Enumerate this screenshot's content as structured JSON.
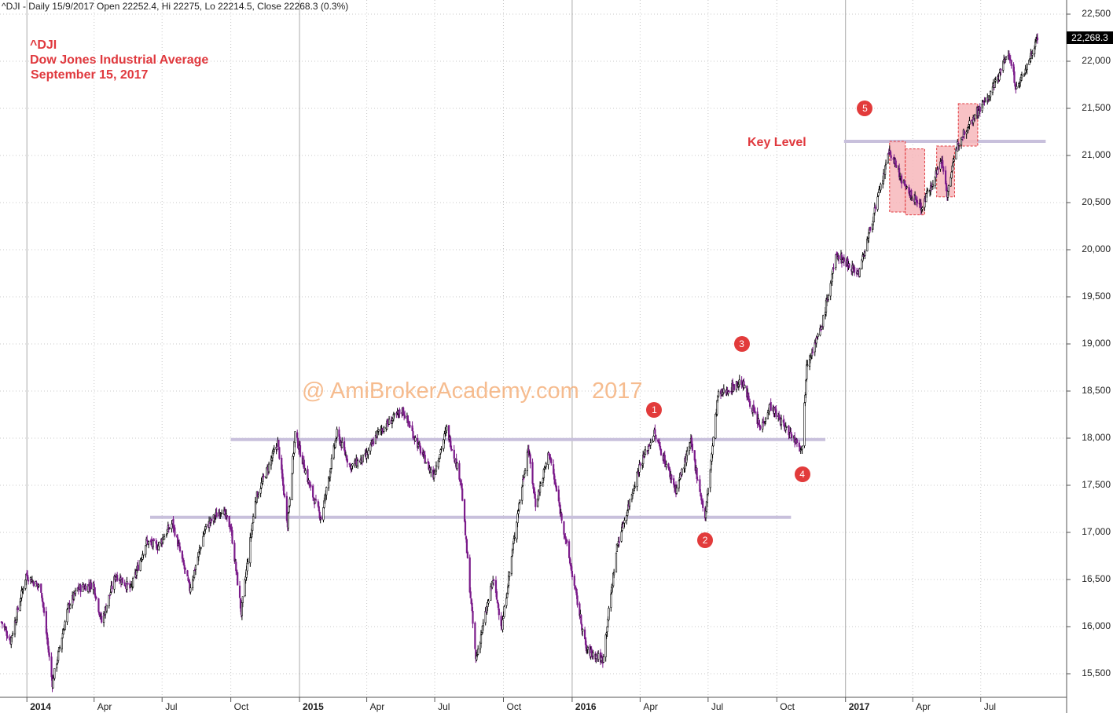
{
  "header": {
    "text": "^DJI - Daily 15/9/2017 Open 22252.4, Hi 22275, Lo 22214.5, Close 22268.3 (0.3%)"
  },
  "title_block": {
    "line1": "^DJI",
    "line2": "Dow Jones Industrial Average",
    "line3": "September 15, 2017"
  },
  "last_price_label": "22,268.3",
  "key_level_label": "Key Level",
  "watermark": "@ AmiBrokerAcademy.com  2017",
  "colors": {
    "up_candle": "#000000",
    "down_candle": "#7b1b8a",
    "level_line": "#c8c0dc",
    "box_fill": "#f7b7bb",
    "box_border": "#e0393e",
    "marker": "#e23b3b",
    "annotation_text": "#e0393e",
    "grid": "#c8c8c8"
  },
  "markers": [
    {
      "label": "1",
      "date": "2016-04-20",
      "price": 18300
    },
    {
      "label": "2",
      "date": "2016-06-27",
      "price": 16920
    },
    {
      "label": "3",
      "date": "2016-08-15",
      "price": 19000
    },
    {
      "label": "4",
      "date": "2016-11-04",
      "price": 17620
    },
    {
      "label": "5",
      "date": "2017-01-27",
      "price": 21500
    }
  ],
  "chart_data": {
    "type": "line",
    "title": "^DJI",
    "xlabel": "",
    "ylabel": "",
    "ylim": [
      15250,
      22650
    ],
    "xlim": [
      "2013-11-26",
      "2017-10-24"
    ],
    "y_ticks": [
      15500,
      16000,
      16500,
      17000,
      17500,
      18000,
      18500,
      19000,
      19500,
      20000,
      20500,
      21000,
      21500,
      22000,
      22500
    ],
    "y_tick_labels": [
      "15,500",
      "16,000",
      "16,500",
      "17,000",
      "17,500",
      "18,000",
      "18,500",
      "19,000",
      "19,500",
      "20,000",
      "20,500",
      "21,000",
      "21,500",
      "22,000",
      "22,500"
    ],
    "x_ticks": [
      {
        "date": "2014-01-01",
        "label": "2014",
        "major": true
      },
      {
        "date": "2014-04-01",
        "label": "Apr",
        "major": false
      },
      {
        "date": "2014-07-01",
        "label": "Jul",
        "major": false
      },
      {
        "date": "2014-10-01",
        "label": "Oct",
        "major": false
      },
      {
        "date": "2015-01-01",
        "label": "2015",
        "major": true
      },
      {
        "date": "2015-04-01",
        "label": "Apr",
        "major": false
      },
      {
        "date": "2015-07-01",
        "label": "Jul",
        "major": false
      },
      {
        "date": "2015-10-01",
        "label": "Oct",
        "major": false
      },
      {
        "date": "2016-01-01",
        "label": "2016",
        "major": true
      },
      {
        "date": "2016-04-01",
        "label": "Apr",
        "major": false
      },
      {
        "date": "2016-07-01",
        "label": "Jul",
        "major": false
      },
      {
        "date": "2016-10-01",
        "label": "Oct",
        "major": false
      },
      {
        "date": "2017-01-01",
        "label": "2017",
        "major": true
      },
      {
        "date": "2017-04-01",
        "label": "Apr",
        "major": false
      },
      {
        "date": "2017-07-01",
        "label": "Jul",
        "major": false
      }
    ],
    "grid": true,
    "series": [
      {
        "name": "^DJI close",
        "points": [
          [
            "2013-11-28",
            16050
          ],
          [
            "2013-12-10",
            15850
          ],
          [
            "2013-12-31",
            16550
          ],
          [
            "2014-01-20",
            16400
          ],
          [
            "2014-02-04",
            15400
          ],
          [
            "2014-02-25",
            16200
          ],
          [
            "2014-03-10",
            16400
          ],
          [
            "2014-03-31",
            16450
          ],
          [
            "2014-04-11",
            16050
          ],
          [
            "2014-04-30",
            16550
          ],
          [
            "2014-05-20",
            16400
          ],
          [
            "2014-06-10",
            16900
          ],
          [
            "2014-06-25",
            16850
          ],
          [
            "2014-07-15",
            17100
          ],
          [
            "2014-08-07",
            16400
          ],
          [
            "2014-08-28",
            17050
          ],
          [
            "2014-09-19",
            17250
          ],
          [
            "2014-10-01",
            17050
          ],
          [
            "2014-10-15",
            16150
          ],
          [
            "2014-11-03",
            17350
          ],
          [
            "2014-12-03",
            17950
          ],
          [
            "2014-12-16",
            17100
          ],
          [
            "2014-12-26",
            18050
          ],
          [
            "2015-01-16",
            17450
          ],
          [
            "2015-01-30",
            17150
          ],
          [
            "2015-02-20",
            18050
          ],
          [
            "2015-03-10",
            17700
          ],
          [
            "2015-03-31",
            17800
          ],
          [
            "2015-04-15",
            18050
          ],
          [
            "2015-05-19",
            18300
          ],
          [
            "2015-06-10",
            17900
          ],
          [
            "2015-06-29",
            17600
          ],
          [
            "2015-07-17",
            18100
          ],
          [
            "2015-08-05",
            17550
          ],
          [
            "2015-08-25",
            15650
          ],
          [
            "2015-09-17",
            16500
          ],
          [
            "2015-09-29",
            16000
          ],
          [
            "2015-10-20",
            17200
          ],
          [
            "2015-11-03",
            17900
          ],
          [
            "2015-11-13",
            17300
          ],
          [
            "2015-12-01",
            17850
          ],
          [
            "2015-12-18",
            17150
          ],
          [
            "2016-01-20",
            15750
          ],
          [
            "2016-02-11",
            15650
          ],
          [
            "2016-03-01",
            16850
          ],
          [
            "2016-03-31",
            17700
          ],
          [
            "2016-04-20",
            18050
          ],
          [
            "2016-05-19",
            17450
          ],
          [
            "2016-06-08",
            17950
          ],
          [
            "2016-06-27",
            17150
          ],
          [
            "2016-07-14",
            18450
          ],
          [
            "2016-08-15",
            18600
          ],
          [
            "2016-09-09",
            18100
          ],
          [
            "2016-09-22",
            18350
          ],
          [
            "2016-10-13",
            18100
          ],
          [
            "2016-11-04",
            17900
          ],
          [
            "2016-11-10",
            18800
          ],
          [
            "2016-11-29",
            19150
          ],
          [
            "2016-12-20",
            19950
          ],
          [
            "2017-01-19",
            19750
          ],
          [
            "2017-02-15",
            20600
          ],
          [
            "2017-03-01",
            21050
          ],
          [
            "2017-03-22",
            20650
          ],
          [
            "2017-04-13",
            20450
          ],
          [
            "2017-05-10",
            20950
          ],
          [
            "2017-05-17",
            20600
          ],
          [
            "2017-06-01",
            21150
          ],
          [
            "2017-06-20",
            21400
          ],
          [
            "2017-07-14",
            21650
          ],
          [
            "2017-08-07",
            22100
          ],
          [
            "2017-08-18",
            21700
          ],
          [
            "2017-09-01",
            21950
          ],
          [
            "2017-09-15",
            22268.3
          ]
        ]
      }
    ],
    "horizontal_levels": [
      {
        "price": 17160,
        "from": "2014-06-15",
        "to": "2016-10-20"
      },
      {
        "price": 17985,
        "from": "2014-10-01",
        "to": "2016-12-05"
      },
      {
        "price": 21150,
        "from": "2016-12-30",
        "to": "2017-09-26"
      }
    ],
    "shaded_zones": [
      {
        "from": "2017-03-01",
        "to": "2017-03-22",
        "high": 21150,
        "low": 20400
      },
      {
        "from": "2017-03-22",
        "to": "2017-04-17",
        "high": 21070,
        "low": 20370
      },
      {
        "from": "2017-05-03",
        "to": "2017-05-27",
        "high": 21100,
        "low": 20560
      },
      {
        "from": "2017-06-01",
        "to": "2017-06-27",
        "high": 21550,
        "low": 21100
      }
    ]
  }
}
